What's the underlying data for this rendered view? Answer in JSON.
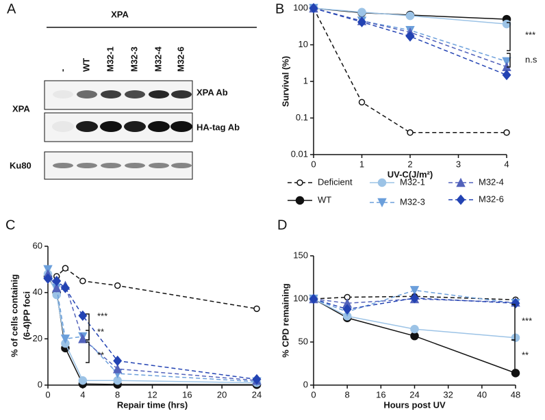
{
  "blot": {
    "panel_label": "A",
    "title": "XPA",
    "lanes": [
      "-",
      "WT",
      "M32-1",
      "M32-3",
      "M32-4",
      "M32-6"
    ],
    "antibodies": [
      "XPA Ab",
      "HA-tag Ab"
    ],
    "row_label": "XPA",
    "loading_label": "Ku80"
  },
  "chart_data": [
    {
      "type": "line",
      "panel_label": "B",
      "y_label": "Survival (%)",
      "x_label": "UV-C(J/m²)",
      "log_y": true,
      "x": [
        0,
        1,
        2,
        4
      ],
      "xlim": [
        0,
        4
      ],
      "xticks": [
        0,
        1,
        2,
        3,
        4
      ],
      "ylim": [
        0.01,
        100
      ],
      "yticks": [
        0.01,
        0.1,
        1,
        10,
        100
      ],
      "annotations": [
        "***",
        "n.s"
      ],
      "series": [
        {
          "name": "Deficient",
          "color": "#111111",
          "marker": "open",
          "dash": true,
          "values": [
            100,
            0.27,
            0.04,
            0.04
          ]
        },
        {
          "name": "WT",
          "color": "#111111",
          "marker": "circle",
          "dash": false,
          "values": [
            100,
            75,
            65,
            50
          ]
        },
        {
          "name": "M32-1",
          "color": "#9cc3e6",
          "marker": "circle",
          "dash": false,
          "values": [
            100,
            78,
            62,
            37
          ]
        },
        {
          "name": "M32-3",
          "color": "#6b9fdb",
          "marker": "tri-down",
          "dash": true,
          "values": [
            100,
            45,
            25,
            3.5
          ]
        },
        {
          "name": "M32-4",
          "color": "#5262bb",
          "marker": "tri-up",
          "dash": true,
          "values": [
            100,
            45,
            22,
            2.5
          ]
        },
        {
          "name": "M32-6",
          "color": "#2343b3",
          "marker": "diamond",
          "dash": true,
          "values": [
            100,
            42,
            17,
            1.5
          ]
        }
      ]
    },
    {
      "type": "line",
      "panel_label": "C",
      "y_label": [
        "% of cells containig",
        "(6-4)PP foci"
      ],
      "x_label": "Repair time (hrs)",
      "log_y": false,
      "x": [
        0,
        1,
        2,
        4,
        8,
        24
      ],
      "xlim": [
        0,
        24
      ],
      "xticks": [
        0,
        4,
        8,
        12,
        16,
        20,
        24
      ],
      "ylim": [
        0,
        60
      ],
      "yticks": [
        0,
        20,
        40,
        60
      ],
      "annotations": [
        "***",
        "**",
        "**"
      ],
      "series": [
        {
          "color": "#111111",
          "marker": "open",
          "dash": true,
          "values": [
            46,
            47,
            50.5,
            45,
            43,
            33
          ]
        },
        {
          "color": "#111111",
          "marker": "circle",
          "dash": false,
          "values": [
            47,
            40,
            16,
            0.5,
            0.3,
            0.2
          ]
        },
        {
          "color": "#9cc3e6",
          "marker": "circle",
          "dash": false,
          "values": [
            48,
            39,
            18,
            2,
            2,
            1
          ]
        },
        {
          "color": "#6b9fdb",
          "marker": "tri-down",
          "dash": true,
          "values": [
            50,
            42,
            20,
            21,
            5,
            1.5
          ]
        },
        {
          "color": "#5262bb",
          "marker": "tri-up",
          "dash": true,
          "values": [
            48,
            42,
            43,
            20,
            7,
            2
          ]
        },
        {
          "color": "#2343b3",
          "marker": "diamond",
          "dash": true,
          "values": [
            46,
            45,
            42,
            30,
            10.5,
            2.5
          ]
        }
      ]
    },
    {
      "type": "line",
      "panel_label": "D",
      "y_label": "% CPD remaining",
      "x_label": "Hours post UV",
      "log_y": false,
      "x": [
        0,
        8,
        24,
        48
      ],
      "xlim": [
        0,
        48
      ],
      "xticks": [
        0,
        8,
        16,
        24,
        32,
        40,
        48
      ],
      "ylim": [
        0,
        150
      ],
      "yticks": [
        0,
        50,
        100,
        150
      ],
      "annotations": [
        "***",
        "**"
      ],
      "series": [
        {
          "color": "#111111",
          "marker": "open",
          "dash": true,
          "values": [
            100,
            102,
            103,
            99
          ]
        },
        {
          "color": "#111111",
          "marker": "circle",
          "dash": false,
          "values": [
            100,
            78,
            57,
            14
          ]
        },
        {
          "color": "#9cc3e6",
          "marker": "circle",
          "dash": false,
          "values": [
            100,
            80,
            65,
            55
          ]
        },
        {
          "color": "#6b9fdb",
          "marker": "tri-down",
          "dash": true,
          "values": [
            100,
            85,
            110,
            95
          ]
        },
        {
          "color": "#5262bb",
          "marker": "tri-up",
          "dash": true,
          "values": [
            100,
            95,
            100,
            96
          ]
        },
        {
          "color": "#2343b3",
          "marker": "diamond",
          "dash": true,
          "values": [
            100,
            88,
            101,
            95
          ]
        }
      ]
    }
  ]
}
